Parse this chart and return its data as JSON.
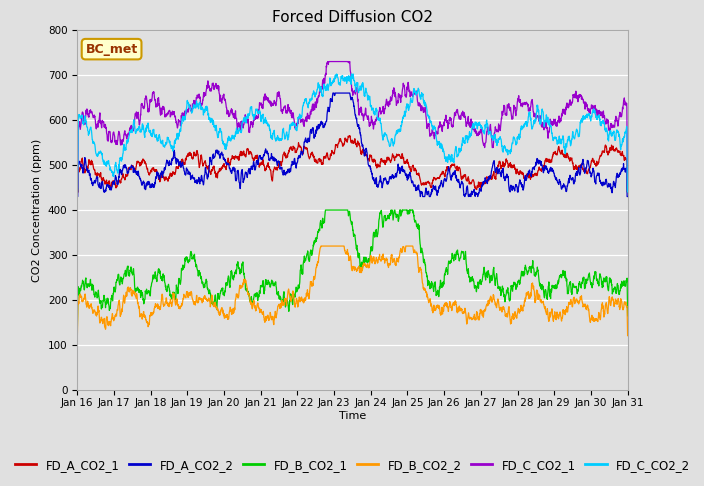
{
  "title": "Forced Diffusion CO2",
  "xlabel": "Time",
  "ylabel": "CO2 Concentration (ppm)",
  "ylim": [
    0,
    800
  ],
  "yticks": [
    0,
    100,
    200,
    300,
    400,
    500,
    600,
    700,
    800
  ],
  "xtick_labels": [
    "Jan 16",
    "Jan 17",
    "Jan 18",
    "Jan 19",
    "Jan 20",
    "Jan 21",
    "Jan 22",
    "Jan 23",
    "Jan 24",
    "Jan 25",
    "Jan 26",
    "Jan 27",
    "Jan 28",
    "Jan 29",
    "Jan 30",
    "Jan 31"
  ],
  "legend_labels": [
    "FD_A_CO2_1",
    "FD_A_CO2_2",
    "FD_B_CO2_1",
    "FD_B_CO2_2",
    "FD_C_CO2_1",
    "FD_C_CO2_2"
  ],
  "line_colors": [
    "#cc0000",
    "#0000cc",
    "#00cc00",
    "#ff9900",
    "#9900cc",
    "#00ccff"
  ],
  "bg_color": "#e0e0e0",
  "plot_bg_color": "#e0e0e0",
  "annotation_text": "BC_met",
  "annotation_color": "#993300",
  "annotation_bg": "#ffffcc",
  "annotation_edge": "#cc9900",
  "grid_color": "#ffffff",
  "title_fontsize": 11,
  "label_fontsize": 8,
  "tick_fontsize": 7.5,
  "legend_fontsize": 8.5
}
